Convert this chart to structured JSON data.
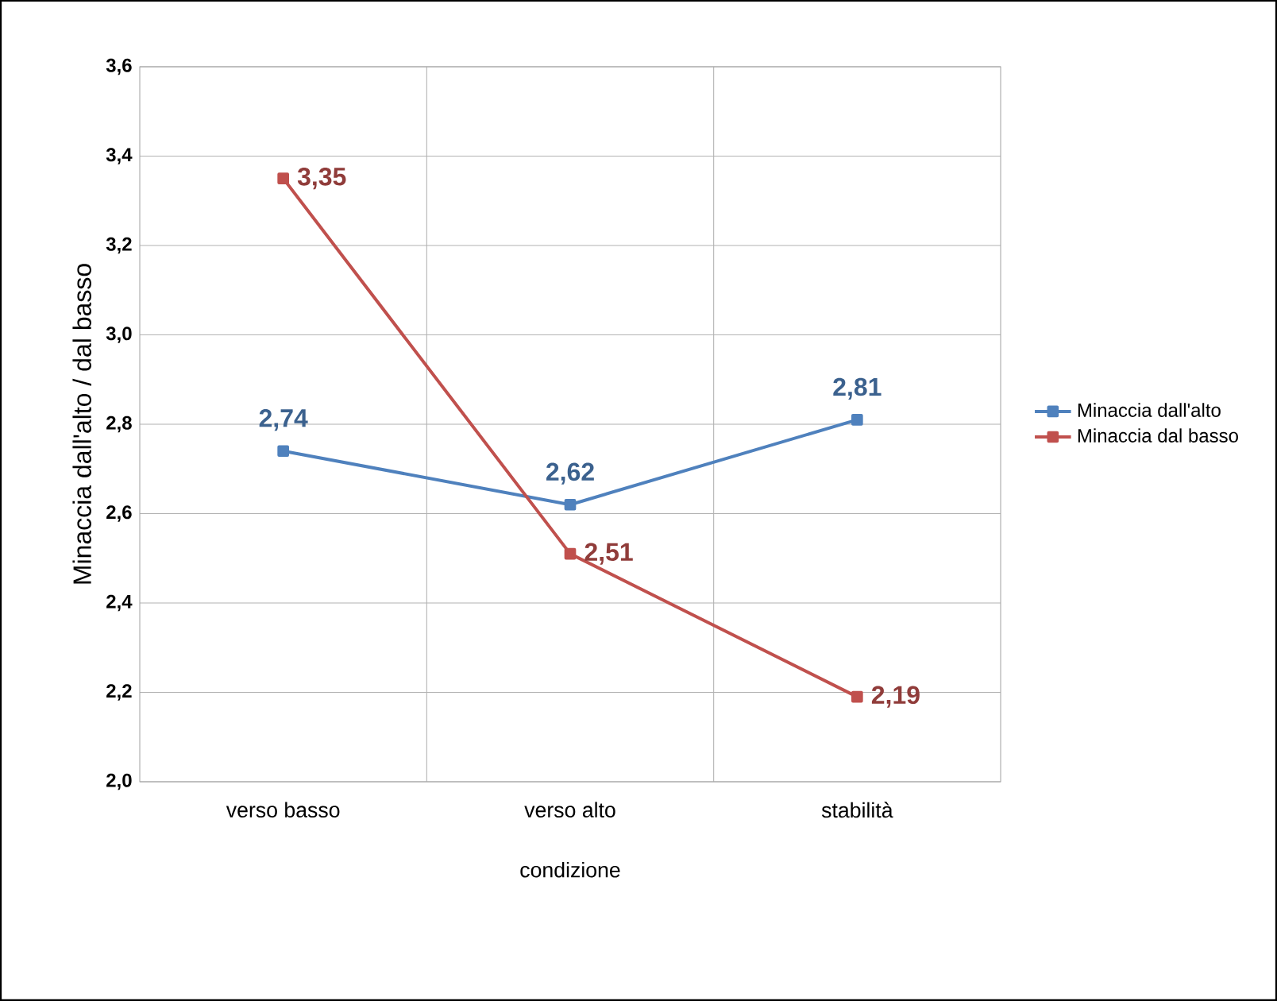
{
  "chart_data": {
    "type": "line",
    "xlabel": "condizione",
    "ylabel": "Minaccia dall'alto / dal basso",
    "categories": [
      "verso basso",
      "verso alto",
      "stabilità"
    ],
    "series": [
      {
        "name": "Minaccia dall'alto",
        "color": "#4f81bd",
        "values": [
          2.74,
          2.62,
          2.81
        ],
        "value_labels": [
          "2,74",
          "2,62",
          "2,81"
        ]
      },
      {
        "name": "Minaccia dal basso",
        "color": "#c0504d",
        "values": [
          3.35,
          2.51,
          2.19
        ],
        "value_labels": [
          "3,35",
          "2,51",
          "2,19"
        ]
      }
    ],
    "ylim": [
      2.0,
      3.6
    ],
    "yticks": [
      {
        "value": 2.0,
        "label": "2,0"
      },
      {
        "value": 2.2,
        "label": "2,2"
      },
      {
        "value": 2.4,
        "label": "2,4"
      },
      {
        "value": 2.6,
        "label": "2,6"
      },
      {
        "value": 2.8,
        "label": "2,8"
      },
      {
        "value": 3.0,
        "label": "3,0"
      },
      {
        "value": 3.2,
        "label": "3,2"
      },
      {
        "value": 3.4,
        "label": "3,4"
      },
      {
        "value": 3.6,
        "label": "3,6"
      }
    ],
    "grid": true,
    "legend": "right",
    "marker": "square",
    "line_style": "solid"
  }
}
